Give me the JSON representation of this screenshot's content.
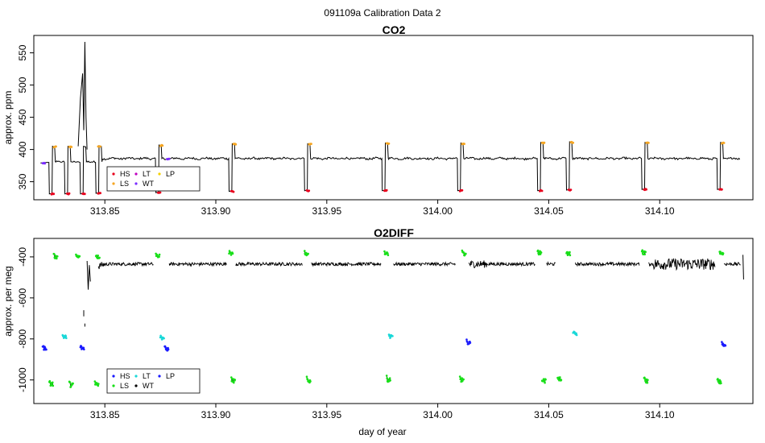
{
  "figure": {
    "title": "091109a   Calibration Data 2"
  },
  "colors": {
    "line": "#000000",
    "HS": "#e8001c",
    "LS": "#f5a623",
    "LT": "#c000c0",
    "WT": "#7b2cff",
    "LP": "#f5d000",
    "HS_o2": "#1a1aff",
    "LS_o2": "#19e019",
    "LT_o2": "#19d8d8",
    "WT_o2": "#000000",
    "LP_o2": "#1a1aff"
  },
  "chart_data": [
    {
      "type": "line",
      "title": "CO2",
      "xlabel": "",
      "ylabel": "approx. ppm",
      "xlim": [
        313.818,
        314.142
      ],
      "ylim": [
        322,
        577
      ],
      "xticks": [
        313.85,
        313.9,
        313.95,
        314.0,
        314.05,
        314.1
      ],
      "xtick_labels": [
        "313.85",
        "313.90",
        "313.95",
        "314.00",
        "314.05",
        "314.10"
      ],
      "yticks": [
        350,
        400,
        450,
        500,
        550
      ],
      "ytick_labels": [
        "350",
        "400",
        "450",
        "500",
        "550"
      ],
      "legend": {
        "position": "bottom-left",
        "entries": [
          "HS",
          "LT",
          "LP",
          "LS",
          "WT"
        ]
      },
      "baseline_ppm": 386,
      "calibration_cycles": [
        {
          "x": 313.825,
          "high": 405,
          "low": 331
        },
        {
          "x": 313.832,
          "high": 405,
          "low": 331
        },
        {
          "x": 313.839,
          "high": 405,
          "low": 331
        },
        {
          "x": 313.846,
          "high": 406,
          "low": 332
        },
        {
          "x": 313.873,
          "high": 407,
          "low": 333
        },
        {
          "x": 313.906,
          "high": 409,
          "low": 335
        },
        {
          "x": 313.94,
          "high": 409,
          "low": 336
        },
        {
          "x": 313.975,
          "high": 410,
          "low": 336
        },
        {
          "x": 314.009,
          "high": 410,
          "low": 336
        },
        {
          "x": 314.045,
          "high": 411,
          "low": 336
        },
        {
          "x": 314.058,
          "high": 412,
          "low": 337
        },
        {
          "x": 314.092,
          "high": 411,
          "low": 338
        },
        {
          "x": 314.126,
          "high": 411,
          "low": 338
        }
      ],
      "spike": {
        "x": [
          313.838,
          313.839,
          313.84,
          313.8405,
          313.841,
          313.8415,
          313.842
        ],
        "y": [
          405,
          480,
          518,
          430,
          567,
          450,
          400
        ]
      },
      "points": [
        {
          "label": "HS",
          "x": [
            313.826,
            313.833,
            313.84,
            313.847,
            313.874,
            313.907,
            313.941,
            313.976,
            314.01,
            314.046,
            314.059,
            314.093,
            314.127
          ],
          "y": [
            331,
            331,
            331,
            332,
            333,
            335,
            336,
            336,
            336,
            336,
            337,
            338,
            338
          ]
        },
        {
          "label": "LS",
          "x": [
            313.827,
            313.834,
            313.847,
            313.875,
            313.908,
            313.942,
            313.977,
            314.011,
            314.047,
            314.06,
            314.094,
            314.128
          ],
          "y": [
            404,
            404,
            405,
            406,
            408,
            408,
            409,
            409,
            410,
            411,
            410,
            410
          ]
        },
        {
          "label": "WT",
          "x": [
            313.822,
            313.878
          ],
          "y": [
            379,
            385
          ]
        }
      ]
    },
    {
      "type": "line",
      "title": "O2DIFF",
      "xlabel": "day of year",
      "ylabel": "approx. per meg",
      "xlim": [
        313.818,
        314.142
      ],
      "ylim": [
        -1115,
        -310
      ],
      "xticks": [
        313.85,
        313.9,
        313.95,
        314.0,
        314.05,
        314.1
      ],
      "xtick_labels": [
        "313.85",
        "313.90",
        "313.95",
        "314.00",
        "314.05",
        "314.10"
      ],
      "yticks": [
        -400,
        -600,
        -800,
        -1000
      ],
      "ytick_labels": [
        "-400",
        "-600",
        "-800",
        "-1000"
      ],
      "legend": {
        "position": "bottom-left",
        "entries": [
          "HS",
          "LT",
          "LP",
          "LS",
          "WT"
        ]
      },
      "baseline_per_meg": -435,
      "clusters": [
        {
          "x": 313.822,
          "y": -845,
          "color": "HS_o2"
        },
        {
          "x": 313.825,
          "y": -1020,
          "color": "LS_o2"
        },
        {
          "x": 313.827,
          "y": -400,
          "color": "LS_o2"
        },
        {
          "x": 313.831,
          "y": -790,
          "color": "LT_o2"
        },
        {
          "x": 313.834,
          "y": -1025,
          "color": "LS_o2"
        },
        {
          "x": 313.837,
          "y": -400,
          "color": "LS_o2"
        },
        {
          "x": 313.839,
          "y": -845,
          "color": "HS_o2"
        },
        {
          "x": 313.8455,
          "y": -1020,
          "color": "LS_o2"
        },
        {
          "x": 313.846,
          "y": -400,
          "color": "LS_o2"
        },
        {
          "x": 313.873,
          "y": -395,
          "color": "LS_o2"
        },
        {
          "x": 313.875,
          "y": -795,
          "color": "LT_o2"
        },
        {
          "x": 313.877,
          "y": -850,
          "color": "HS_o2"
        },
        {
          "x": 313.907,
          "y": -1005,
          "color": "LS_o2"
        },
        {
          "x": 313.906,
          "y": -385,
          "color": "LS_o2"
        },
        {
          "x": 313.941,
          "y": -1005,
          "color": "LS_o2"
        },
        {
          "x": 313.94,
          "y": -385,
          "color": "LS_o2"
        },
        {
          "x": 313.977,
          "y": -1000,
          "color": "LS_o2"
        },
        {
          "x": 313.976,
          "y": -385,
          "color": "LS_o2"
        },
        {
          "x": 313.978,
          "y": -790,
          "color": "LT_o2"
        },
        {
          "x": 314.01,
          "y": -1000,
          "color": "LS_o2"
        },
        {
          "x": 314.011,
          "y": -385,
          "color": "LS_o2"
        },
        {
          "x": 314.013,
          "y": -820,
          "color": "HS_o2"
        },
        {
          "x": 314.047,
          "y": -1005,
          "color": "LS_o2"
        },
        {
          "x": 314.045,
          "y": -380,
          "color": "LS_o2"
        },
        {
          "x": 314.054,
          "y": -995,
          "color": "LS_o2"
        },
        {
          "x": 314.058,
          "y": -385,
          "color": "LS_o2"
        },
        {
          "x": 314.061,
          "y": -775,
          "color": "LT_o2"
        },
        {
          "x": 314.093,
          "y": -1005,
          "color": "LS_o2"
        },
        {
          "x": 314.092,
          "y": -380,
          "color": "LS_o2"
        },
        {
          "x": 314.126,
          "y": -1010,
          "color": "LS_o2"
        },
        {
          "x": 314.127,
          "y": -385,
          "color": "LS_o2"
        },
        {
          "x": 314.128,
          "y": -830,
          "color": "HS_o2"
        }
      ]
    }
  ]
}
